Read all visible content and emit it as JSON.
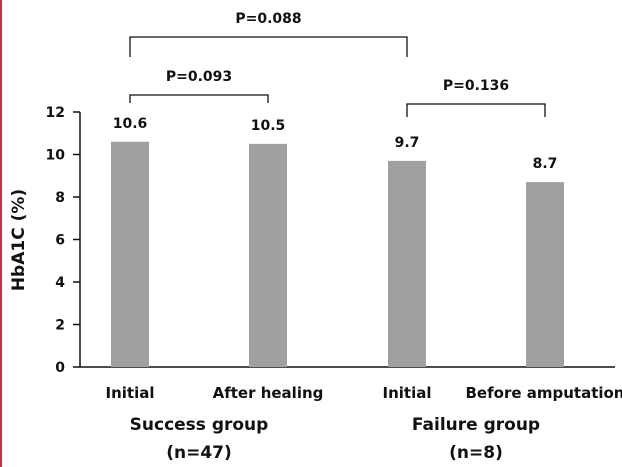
{
  "chart_data": {
    "type": "bar",
    "categories": [
      "Initial",
      "After healing",
      "Initial",
      "Before amputation"
    ],
    "values": [
      10.6,
      10.5,
      9.7,
      8.7
    ],
    "value_labels": [
      "10.6",
      "10.5",
      "9.7",
      "8.7"
    ],
    "ylabel": "HbA1C (%)",
    "ylim": [
      0,
      12
    ],
    "yticks": [
      0,
      2,
      4,
      6,
      8,
      10,
      12
    ],
    "ytick_labels": [
      "0",
      "2",
      "4",
      "6",
      "8",
      "10",
      "12"
    ],
    "groups": [
      {
        "label": "Success group",
        "n_label": "(n=47)"
      },
      {
        "label": "Failure group",
        "n_label": "(n=8)"
      }
    ],
    "comparisons": [
      {
        "label": "P=0.088",
        "from": 0,
        "to": 2
      },
      {
        "label": "P=0.093",
        "from": 0,
        "to": 1
      },
      {
        "label": "P=0.136",
        "from": 2,
        "to": 3
      }
    ],
    "bar_color": "#a0a0a0",
    "grid": false
  }
}
